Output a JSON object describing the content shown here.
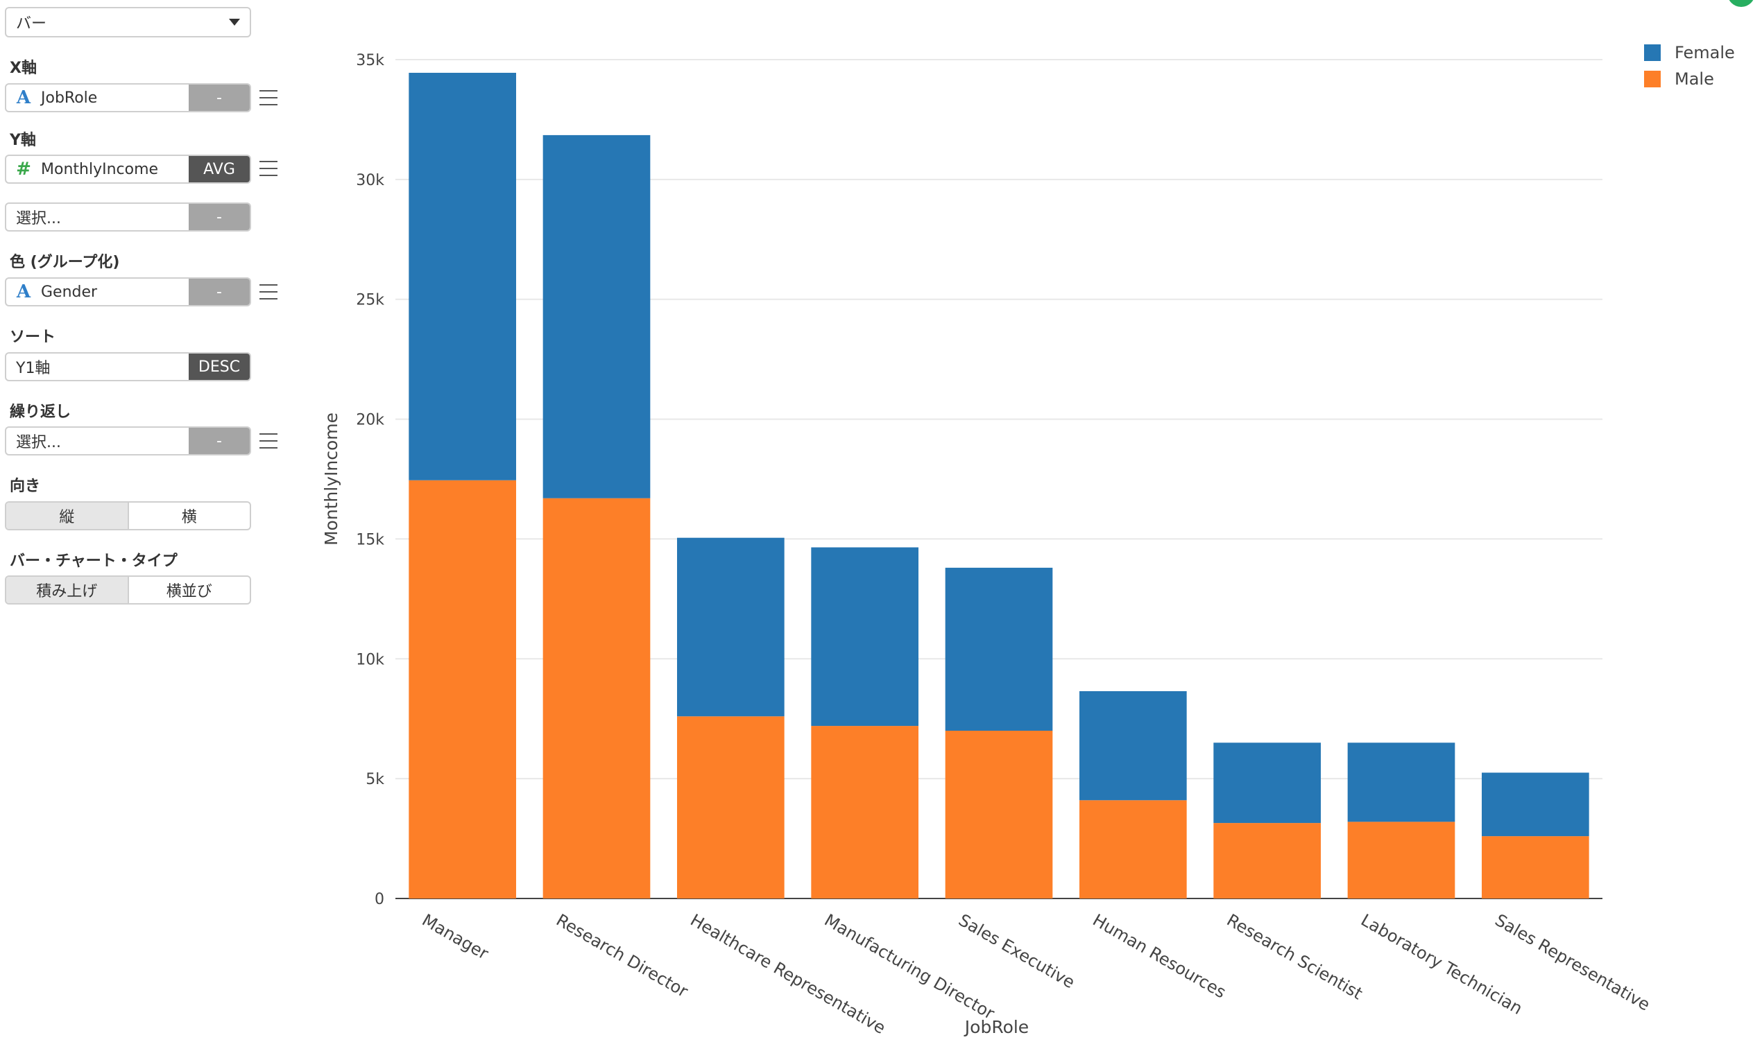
{
  "sidebar": {
    "chart_type_value": "バー",
    "x_axis": {
      "label": "X軸",
      "field": "JobRole",
      "button": "-"
    },
    "y_axis": {
      "label": "Y軸",
      "field": "MonthlyIncome",
      "button": "AVG"
    },
    "y_axis2": {
      "placeholder": "選択...",
      "button": "-"
    },
    "color": {
      "label": "色 (グループ化)",
      "field": "Gender",
      "button": "-"
    },
    "sort": {
      "label": "ソート",
      "field": "Y1軸",
      "button": "DESC"
    },
    "repeat": {
      "label": "繰り返し",
      "placeholder": "選択...",
      "button": "-"
    },
    "orientation": {
      "label": "向き",
      "options": [
        "縦",
        "横"
      ]
    },
    "bar_type": {
      "label": "バー・チャート・タイプ",
      "options": [
        "積み上げ",
        "横並び"
      ]
    }
  },
  "colors": {
    "female": "#2677b4",
    "male": "#fd7f28"
  },
  "chart_data": {
    "type": "bar",
    "stacked": true,
    "xlabel": "JobRole",
    "ylabel": "MonthlyIncome",
    "ylim": [
      0,
      35000
    ],
    "yticks": [
      0,
      5000,
      10000,
      15000,
      20000,
      25000,
      30000,
      35000
    ],
    "ytick_labels": [
      "0",
      "5k",
      "10k",
      "15k",
      "20k",
      "25k",
      "30k",
      "35k"
    ],
    "categories": [
      "Manager",
      "Research Director",
      "Healthcare Representative",
      "Manufacturing Director",
      "Sales Executive",
      "Human Resources",
      "Research Scientist",
      "Laboratory Technician",
      "Sales Representative"
    ],
    "series": [
      {
        "name": "Male",
        "values": [
          17450,
          16700,
          7600,
          7200,
          7000,
          4100,
          3150,
          3200,
          2600
        ]
      },
      {
        "name": "Female",
        "values": [
          17000,
          15150,
          7450,
          7450,
          6800,
          4550,
          3350,
          3300,
          2650
        ]
      }
    ],
    "legend": {
      "position": "top-right",
      "order": [
        "Female",
        "Male"
      ]
    }
  }
}
